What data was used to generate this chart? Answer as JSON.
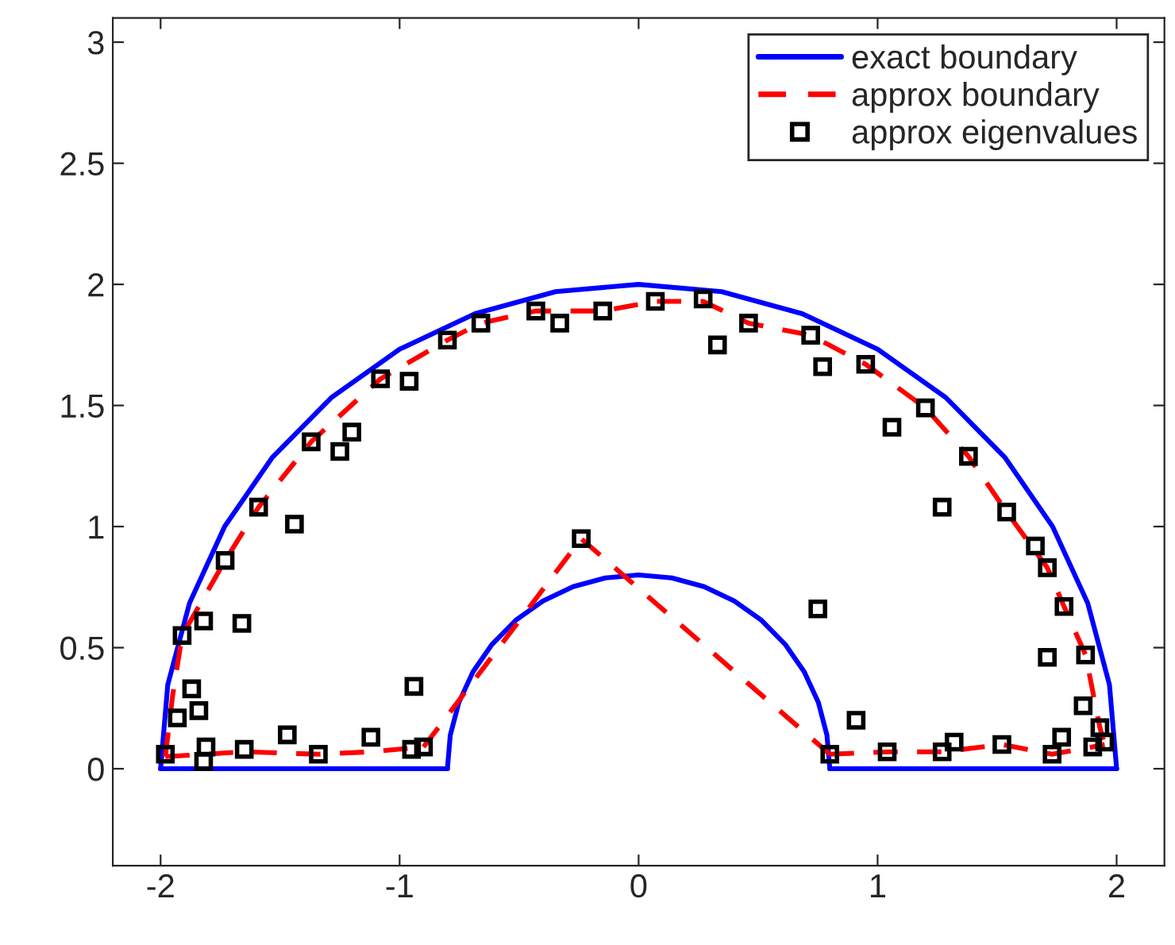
{
  "chart_data": {
    "type": "line",
    "xlim": [
      -2.2,
      2.2
    ],
    "ylim": [
      -0.4,
      3.1
    ],
    "xticks": [
      -2,
      -1,
      0,
      1,
      2
    ],
    "yticks": [
      0,
      0.5,
      1,
      1.5,
      2,
      2.5,
      3
    ],
    "grid": false,
    "legend": "top right",
    "series": [
      {
        "name": "exact boundary",
        "color": "#0000ff",
        "line_style": "solid",
        "x": [
          -2,
          -1.97,
          -1.879,
          -1.732,
          -1.532,
          -1.286,
          -1,
          -0.684,
          -0.347,
          0,
          0.347,
          0.684,
          1,
          1.286,
          1.532,
          1.732,
          1.879,
          1.97,
          2
        ],
        "values": [
          0,
          0.347,
          0.684,
          1,
          1.286,
          1.532,
          1.732,
          1.879,
          1.97,
          2,
          1.97,
          1.879,
          1.732,
          1.532,
          1.286,
          1,
          0.684,
          0.347,
          0
        ]
      },
      {
        "color": "#0000ff",
        "line_style": "solid",
        "x": [
          -2,
          -0.8
        ],
        "values": [
          0,
          0
        ]
      },
      {
        "color": "#0000ff",
        "line_style": "solid",
        "x": [
          -0.8,
          -0.788,
          -0.752,
          -0.693,
          -0.613,
          -0.514,
          -0.4,
          -0.274,
          -0.139,
          0,
          0.139,
          0.274,
          0.4,
          0.514,
          0.613,
          0.693,
          0.752,
          0.788,
          0.8
        ],
        "values": [
          0,
          0.139,
          0.274,
          0.4,
          0.514,
          0.613,
          0.693,
          0.752,
          0.788,
          0.8,
          0.788,
          0.752,
          0.693,
          0.613,
          0.514,
          0.4,
          0.274,
          0.139,
          0
        ]
      },
      {
        "color": "#0000ff",
        "line_style": "solid",
        "x": [
          0.8,
          2
        ],
        "values": [
          0,
          0
        ]
      },
      {
        "name": "approx boundary",
        "color": "#ff0000",
        "line_style": "dashed",
        "x": [
          -1.98,
          -1.95,
          -1.91,
          -1.73,
          -1.59,
          -1.37,
          -1.08,
          -0.8,
          -0.66,
          -0.43,
          -0.15,
          0.07,
          0.27,
          0.46,
          0.72,
          0.95,
          1.2,
          1.38,
          1.54,
          1.71,
          1.78,
          1.87,
          1.93,
          1.95
        ],
        "values": [
          0.05,
          0.3,
          0.55,
          0.86,
          1.08,
          1.35,
          1.61,
          1.77,
          1.84,
          1.89,
          1.89,
          1.93,
          1.93,
          1.84,
          1.79,
          1.67,
          1.49,
          1.29,
          1.06,
          0.83,
          0.67,
          0.47,
          0.17,
          0.1
        ]
      },
      {
        "color": "#ff0000",
        "line_style": "dashed",
        "x": [
          0.8,
          1.04,
          1.27,
          1.52,
          1.73,
          1.9,
          1.95
        ],
        "values": [
          0.06,
          0.07,
          0.07,
          0.1,
          0.06,
          0.09,
          0.1
        ]
      },
      {
        "color": "#ff0000",
        "line_style": "dashed",
        "x": [
          -0.9,
          -0.83,
          -0.24,
          0.8
        ],
        "values": [
          0.09,
          0.18,
          0.95,
          0.06
        ]
      },
      {
        "color": "#ff0000",
        "line_style": "dashed",
        "x": [
          -1.98,
          -1.65,
          -1.34,
          -1.12,
          -0.9
        ],
        "values": [
          0.05,
          0.07,
          0.06,
          0.07,
          0.09
        ]
      },
      {
        "name": "approx eigenvalues",
        "type": "scatter",
        "color": "#000000",
        "marker": "square",
        "x": [
          -1.98,
          -1.82,
          -1.81,
          -1.93,
          -1.84,
          -1.87,
          -1.91,
          -1.82,
          -1.66,
          -1.73,
          -1.59,
          -1.44,
          -1.37,
          -1.25,
          -1.2,
          -1.08,
          -0.96,
          -0.8,
          -0.66,
          -0.43,
          -0.33,
          -0.15,
          -0.24,
          -0.94,
          -1.47,
          -1.65,
          -1.34,
          -1.12,
          -0.95,
          -0.9,
          0.07,
          0.27,
          0.46,
          0.33,
          0.72,
          0.77,
          0.95,
          1.2,
          1.06,
          1.38,
          1.27,
          1.54,
          1.66,
          1.71,
          1.78,
          1.87,
          1.71,
          0.75,
          1.86,
          1.93,
          1.95,
          1.9,
          1.77,
          1.73,
          1.52,
          1.32,
          1.27,
          1.04,
          0.91,
          0.8
        ],
        "values": [
          0.06,
          0.03,
          0.09,
          0.21,
          0.24,
          0.33,
          0.55,
          0.61,
          0.6,
          0.86,
          1.08,
          1.01,
          1.35,
          1.31,
          1.39,
          1.61,
          1.6,
          1.77,
          1.84,
          1.89,
          1.84,
          1.89,
          0.95,
          0.34,
          0.14,
          0.08,
          0.06,
          0.13,
          0.08,
          0.09,
          1.93,
          1.94,
          1.84,
          1.75,
          1.79,
          1.66,
          1.67,
          1.49,
          1.41,
          1.29,
          1.08,
          1.06,
          0.92,
          0.83,
          0.67,
          0.47,
          0.46,
          0.66,
          0.26,
          0.17,
          0.11,
          0.09,
          0.13,
          0.06,
          0.1,
          0.11,
          0.07,
          0.07,
          0.2,
          0.06
        ]
      }
    ]
  }
}
